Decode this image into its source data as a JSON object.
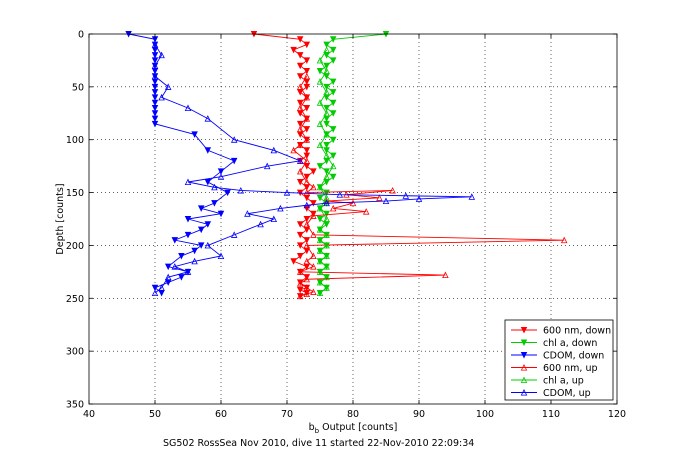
{
  "chart_data": {
    "type": "line",
    "title": "",
    "caption": "SG502 RossSea Nov 2010, dive 11 started 22-Nov-2010 22:09:34",
    "xlabel_main": "b",
    "xlabel_sub": "b",
    "xlabel_rest": " Output [counts]",
    "ylabel": "Depth [counts]",
    "xlim": [
      40,
      120
    ],
    "ylim": [
      0,
      350
    ],
    "y_reversed": true,
    "xticks": [
      "40",
      "50",
      "60",
      "70",
      "80",
      "90",
      "100",
      "110",
      "120"
    ],
    "yticks": [
      "0",
      "50",
      "100",
      "150",
      "200",
      "250",
      "300",
      "350"
    ],
    "grid": true,
    "legend_position": "bottom-right",
    "colors": {
      "600nm": "#ff0000",
      "chla": "#00cc00",
      "cdom": "#0000ff"
    },
    "series": [
      {
        "name": "600 nm, down",
        "color": "#ff0000",
        "marker": "down",
        "x": [
          65,
          72,
          73,
          71,
          72,
          73,
          72,
          73,
          72,
          73,
          73,
          72,
          73,
          72,
          73,
          72,
          73,
          72,
          73,
          72,
          73,
          72,
          73,
          73,
          72,
          73,
          74,
          73,
          72,
          73,
          72,
          73,
          74,
          73,
          74,
          73,
          72,
          73,
          72,
          73,
          72,
          73,
          72,
          71,
          73,
          72,
          73,
          72,
          73,
          72,
          73,
          72
        ],
        "y": [
          0,
          5,
          10,
          15,
          20,
          25,
          30,
          35,
          40,
          45,
          50,
          55,
          60,
          65,
          70,
          75,
          80,
          85,
          90,
          95,
          100,
          105,
          110,
          115,
          120,
          125,
          130,
          135,
          140,
          145,
          150,
          155,
          160,
          165,
          170,
          175,
          180,
          185,
          190,
          195,
          200,
          205,
          210,
          215,
          220,
          225,
          230,
          235,
          240,
          242,
          245,
          248
        ]
      },
      {
        "name": "chl a, down",
        "color": "#00cc00",
        "marker": "down",
        "x": [
          85,
          77,
          76,
          77,
          76,
          77,
          76,
          75,
          76,
          77,
          76,
          77,
          76,
          77,
          76,
          77,
          76,
          76,
          77,
          76,
          77,
          76,
          76,
          77,
          76,
          75,
          76,
          77,
          76,
          75,
          76,
          75,
          76,
          75,
          76,
          75,
          76,
          75,
          76,
          75,
          76,
          75,
          76,
          75,
          76,
          75,
          76,
          75,
          76,
          75
        ],
        "y": [
          0,
          5,
          10,
          15,
          20,
          25,
          30,
          35,
          40,
          45,
          50,
          55,
          60,
          65,
          70,
          75,
          80,
          85,
          90,
          95,
          100,
          105,
          110,
          115,
          120,
          125,
          130,
          135,
          140,
          145,
          150,
          155,
          160,
          165,
          170,
          175,
          180,
          185,
          190,
          195,
          200,
          205,
          210,
          215,
          220,
          225,
          230,
          235,
          240,
          245
        ]
      },
      {
        "name": "CDOM, down",
        "color": "#0000ff",
        "marker": "down",
        "x": [
          46,
          50,
          50,
          50,
          50,
          50,
          50,
          50,
          50,
          50,
          50,
          50,
          50,
          50,
          50,
          50,
          50,
          50,
          56,
          58,
          62,
          60,
          58,
          61,
          59,
          57,
          60,
          55,
          58,
          57,
          55,
          53,
          57,
          56,
          54,
          52,
          55,
          54,
          52,
          50,
          51
        ],
        "y": [
          0,
          5,
          10,
          15,
          20,
          25,
          30,
          35,
          40,
          45,
          50,
          55,
          60,
          65,
          70,
          75,
          80,
          85,
          95,
          110,
          120,
          130,
          140,
          150,
          160,
          165,
          170,
          175,
          180,
          185,
          190,
          195,
          200,
          205,
          210,
          220,
          225,
          230,
          235,
          240,
          245
        ]
      },
      {
        "name": "600 nm, up",
        "color": "#ff0000",
        "marker": "up",
        "x": [
          73,
          72,
          73,
          72,
          73,
          72,
          73,
          72,
          71,
          73,
          72,
          73,
          74,
          73,
          86,
          79,
          84,
          76,
          80,
          77,
          82,
          74,
          73,
          74,
          112,
          73,
          74,
          73,
          74,
          72,
          94,
          73,
          72,
          73,
          74,
          73,
          72
        ],
        "y": [
          40,
          50,
          60,
          70,
          80,
          90,
          100,
          105,
          110,
          120,
          130,
          140,
          145,
          150,
          148,
          152,
          155,
          158,
          160,
          165,
          168,
          172,
          180,
          190,
          195,
          200,
          210,
          215,
          220,
          225,
          228,
          232,
          236,
          240,
          244,
          246,
          248
        ]
      },
      {
        "name": "chl a, up",
        "color": "#00cc00",
        "marker": "up",
        "x": [
          76,
          75,
          76,
          75,
          76,
          75,
          76,
          75,
          76,
          75,
          76,
          77,
          76,
          75,
          76,
          75,
          76,
          75,
          76,
          75,
          76,
          75,
          76,
          75,
          76,
          75,
          76,
          75,
          76,
          75
        ],
        "y": [
          15,
          25,
          35,
          45,
          55,
          65,
          75,
          85,
          95,
          105,
          115,
          125,
          135,
          145,
          155,
          165,
          175,
          185,
          190,
          195,
          200,
          205,
          210,
          215,
          220,
          225,
          230,
          235,
          240,
          245
        ]
      },
      {
        "name": "CDOM, up",
        "color": "#0000ff",
        "marker": "up",
        "x": [
          50,
          51,
          50,
          50,
          52,
          51,
          55,
          58,
          62,
          68,
          72,
          67,
          60,
          55,
          59,
          63,
          70,
          78,
          88,
          98,
          90,
          85,
          76,
          73,
          69,
          64,
          68,
          66,
          62,
          58,
          60,
          56,
          53,
          55,
          52,
          51,
          50
        ],
        "y": [
          10,
          20,
          30,
          40,
          50,
          60,
          70,
          80,
          100,
          110,
          120,
          125,
          135,
          140,
          145,
          148,
          150,
          152,
          153,
          154,
          156,
          158,
          160,
          162,
          165,
          170,
          175,
          180,
          190,
          200,
          210,
          215,
          220,
          225,
          230,
          240,
          245
        ]
      }
    ]
  }
}
